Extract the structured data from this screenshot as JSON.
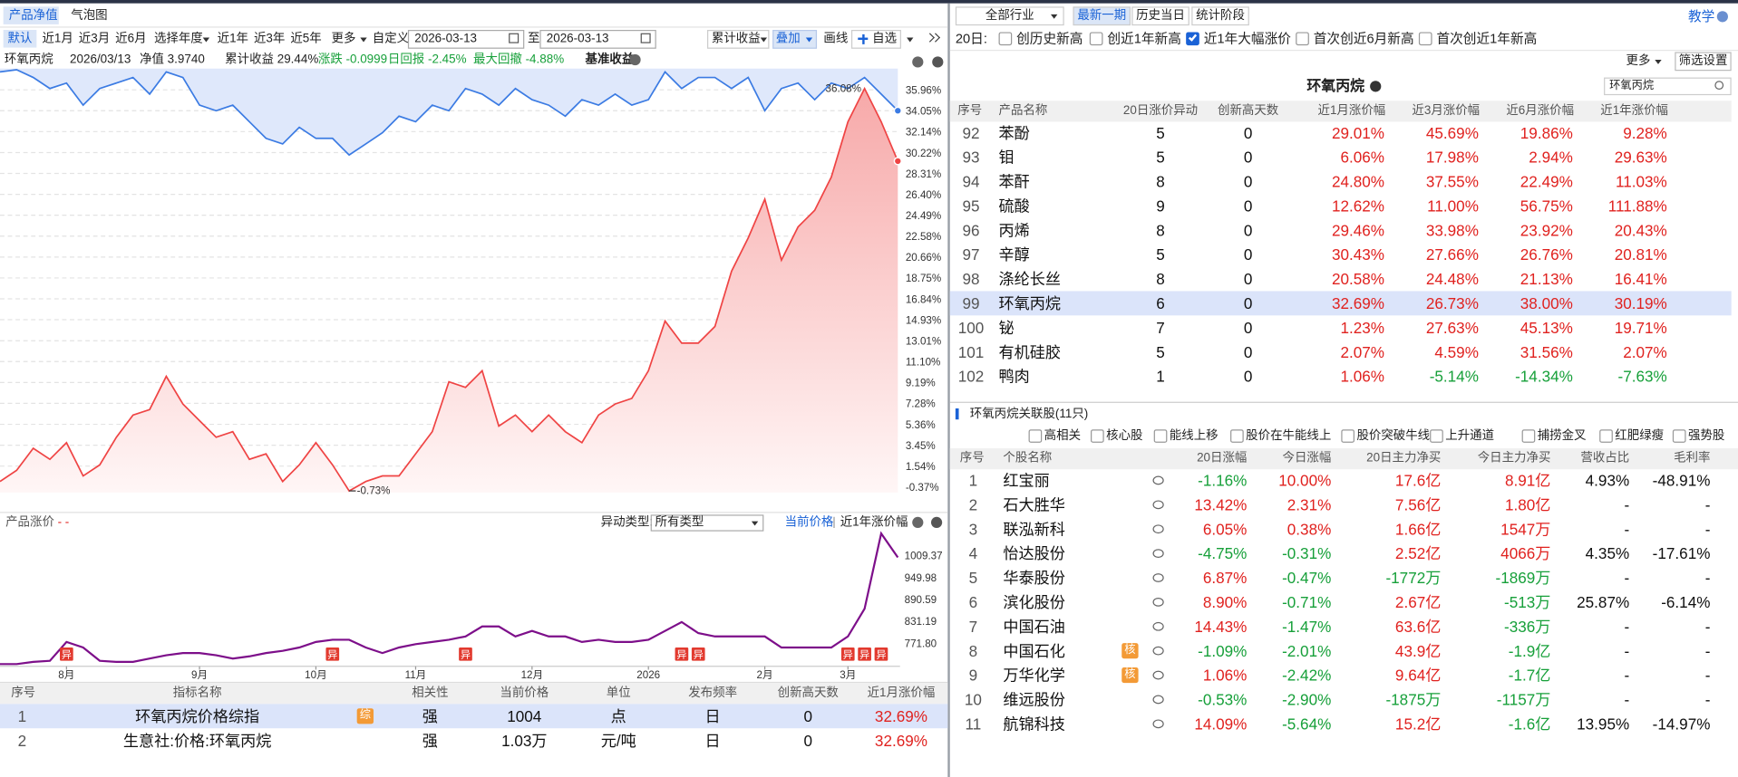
{
  "left": {
    "tabs": [
      "产品净值",
      "气泡图"
    ],
    "range_buttons": [
      "默认",
      "近1月",
      "近3月",
      "近6月",
      "选择年度",
      "近1年",
      "近3年",
      "近5年",
      "更多",
      "自定义"
    ],
    "date_from": "2026-03-13",
    "date_sep": "至",
    "date_to": "2026-03-13",
    "tools": [
      "累计收益",
      "叠加",
      "画线",
      "自选"
    ],
    "info": {
      "name": "环氧丙烷",
      "date": "2026/03/13",
      "nav": "净值 3.9740",
      "cum": "累计收益 29.44%",
      "chg": "涨跌 -0.0999",
      "daily": "日回报 -2.45%",
      "maxdd": "最大回撤 -4.88%",
      "bench": "基准收益"
    },
    "indicators": {
      "columns": [
        "序号",
        "指标名称",
        "相关性",
        "当前价格",
        "单位",
        "发布频率",
        "创新高天数",
        "近1月涨价幅"
      ],
      "rows": [
        [
          "1",
          "环氧丙烷价格综指",
          "强",
          "1004",
          "点",
          "日",
          "0",
          "32.69%"
        ],
        [
          "2",
          "生意社:价格:环氧丙烷",
          "强",
          "1.03万",
          "元/吨",
          "日",
          "0",
          "32.69%"
        ]
      ],
      "badges": [
        {
          "row": 0,
          "label": "综"
        }
      ],
      "selected": 0
    }
  },
  "nav_chart": {
    "type": "line",
    "ylim": [
      -0.88,
      37.9
    ],
    "yticks": [
      {
        "value": 35.96,
        "label": "35.96%"
      },
      {
        "value": 34.05,
        "label": "34.05%"
      },
      {
        "value": 32.14,
        "label": "32.14%"
      },
      {
        "value": 30.22,
        "label": "30.22%"
      },
      {
        "value": 28.31,
        "label": "28.31%"
      },
      {
        "value": 26.4,
        "label": "26.40%"
      },
      {
        "value": 24.49,
        "label": "24.49%"
      },
      {
        "value": 22.58,
        "label": "22.58%"
      },
      {
        "value": 20.66,
        "label": "20.66%"
      },
      {
        "value": 18.75,
        "label": "18.75%"
      },
      {
        "value": 16.84,
        "label": "16.84%"
      },
      {
        "value": 14.93,
        "label": "14.93%"
      },
      {
        "value": 13.01,
        "label": "13.01%"
      },
      {
        "value": 11.1,
        "label": "11.10%"
      },
      {
        "value": 9.19,
        "label": "9.19%"
      },
      {
        "value": 7.28,
        "label": "7.28%"
      },
      {
        "value": 5.36,
        "label": "5.36%"
      },
      {
        "value": 3.45,
        "label": "3.45%"
      },
      {
        "value": 1.54,
        "label": "1.54%"
      },
      {
        "value": -0.37,
        "label": "-0.37%"
      }
    ],
    "grid": true,
    "series": [
      {
        "color": "#3b7be3",
        "fill_color": "#dfe8fb",
        "area": "above",
        "values": [
          37.6,
          37.8,
          37.09,
          36.08,
          36.58,
          34.56,
          36.08,
          36.58,
          37.09,
          35.57,
          37.6,
          37.09,
          34.56,
          34.05,
          34.56,
          33.04,
          31.52,
          31.01,
          32.53,
          31.52,
          31.52,
          30.0,
          31.01,
          32.03,
          33.55,
          33.04,
          34.56,
          34.05,
          36.08,
          35.57,
          34.56,
          36.08,
          35.06,
          34.56,
          33.55,
          35.06,
          34.56,
          35.57,
          34.56,
          35.06,
          37.6,
          36.08,
          37.09,
          37.09,
          36.08,
          37.09,
          34.05,
          36.08,
          36.58,
          35.06,
          36.58,
          36.08,
          37.09,
          35.57,
          34.05
        ]
      },
      {
        "color": "#ef4444",
        "fill_color": "#f7a9a9",
        "area": "below",
        "values": [
          0.13,
          1.15,
          3.17,
          2.16,
          3.68,
          0.64,
          1.65,
          4.18,
          6.21,
          6.71,
          9.75,
          7.22,
          5.7,
          4.18,
          4.69,
          2.16,
          2.66,
          0.13,
          1.65,
          3.68,
          1.65,
          -0.73,
          0.13,
          0.64,
          0.64,
          2.66,
          4.69,
          9.25,
          8.74,
          10.26,
          5.2,
          6.21,
          4.69,
          6.21,
          4.69,
          3.68,
          6.21,
          7.22,
          7.73,
          10.26,
          14.81,
          12.79,
          12.79,
          14.31,
          19.37,
          22.41,
          25.95,
          20.38,
          23.42,
          24.94,
          27.98,
          33.04,
          36.08,
          33.04,
          29.44
        ]
      }
    ],
    "annotations": [
      {
        "value": 36.08,
        "label": "36.08%"
      },
      {
        "value": -0.73,
        "label": "-0.73%"
      }
    ]
  },
  "price_chart": {
    "type": "line",
    "title": "产品涨价",
    "title_suffix": "- -",
    "filter_label": "异动类型:",
    "filter_value": "所有类型",
    "links": [
      "当前价格",
      "近1年涨价幅"
    ],
    "color": "#7d0f8a",
    "ylim": [
      714.8,
      1074.8
    ],
    "yticks": [
      {
        "value": 771.8,
        "label": "771.80"
      },
      831.19,
      890.59,
      949.98,
      1009.37
    ],
    "categories": [
      null,
      null,
      null,
      null,
      "8月",
      null,
      null,
      null,
      null,
      null,
      null,
      null,
      "9月",
      null,
      null,
      null,
      null,
      null,
      null,
      "10月",
      null,
      null,
      null,
      null,
      null,
      "11月",
      null,
      null,
      null,
      null,
      null,
      null,
      "12月",
      null,
      null,
      null,
      null,
      null,
      null,
      "2026",
      null,
      null,
      null,
      null,
      null,
      null,
      "2月",
      null,
      null,
      null,
      null,
      "3月",
      null,
      null,
      null
    ],
    "values": [
      714.8,
      714.8,
      720.8,
      723.8,
      774.8,
      759.8,
      723.8,
      720.8,
      720.8,
      729.8,
      738.8,
      744.8,
      744.8,
      738.8,
      729.8,
      735.8,
      744.8,
      750.8,
      759.8,
      774.8,
      780.8,
      780.8,
      759.8,
      744.8,
      759.8,
      768.8,
      774.8,
      780.8,
      789.8,
      816.8,
      816.8,
      789.8,
      804.8,
      789.8,
      789.8,
      774.8,
      780.8,
      774.8,
      774.8,
      780.8,
      804.8,
      828.8,
      798.8,
      789.8,
      789.8,
      789.8,
      789.8,
      759.8,
      759.8,
      759.8,
      759.8,
      789.8,
      864.8,
      1068.8,
      1004
    ],
    "anomalies": [
      4,
      20,
      28,
      41,
      42,
      51,
      52,
      53
    ],
    "anomaly_label": "异"
  },
  "right": {
    "industry": "全部行业",
    "tabs": [
      "最新一期",
      "历史当日",
      "统计阶段"
    ],
    "active_tab": 0,
    "help": "教学",
    "filter_prefix": "20日:",
    "filters": [
      {
        "label": "创历史新高",
        "checked": false
      },
      {
        "label": "创近1年新高",
        "checked": false
      },
      {
        "label": "近1年大幅涨价",
        "checked": true
      },
      {
        "label": "首次创近6月新高",
        "checked": false
      },
      {
        "label": "首次创近1年新高",
        "checked": false
      }
    ],
    "more": "更多",
    "settings": "筛选设置",
    "title": "环氧丙烷",
    "search": "环氧丙烷",
    "products": {
      "columns": [
        "序号",
        "产品名称",
        "20日涨价异动",
        "创新高天数",
        "近1月涨价幅",
        "近3月涨价幅",
        "近6月涨价幅",
        "近1年涨价幅"
      ],
      "rows": [
        [
          "92",
          "苯酚",
          "5",
          "0",
          "29.01%",
          "45.69%",
          "19.86%",
          "9.28%"
        ],
        [
          "93",
          "钼",
          "5",
          "0",
          "6.06%",
          "17.98%",
          "2.94%",
          "29.63%"
        ],
        [
          "94",
          "苯酐",
          "8",
          "0",
          "24.80%",
          "37.55%",
          "22.49%",
          "11.03%"
        ],
        [
          "95",
          "硫酸",
          "9",
          "0",
          "12.62%",
          "11.00%",
          "56.75%",
          "111.88%"
        ],
        [
          "96",
          "丙烯",
          "8",
          "0",
          "29.46%",
          "33.98%",
          "23.92%",
          "20.43%"
        ],
        [
          "97",
          "辛醇",
          "5",
          "0",
          "30.43%",
          "27.66%",
          "26.76%",
          "20.81%"
        ],
        [
          "98",
          "涤纶长丝",
          "8",
          "0",
          "20.58%",
          "24.48%",
          "21.13%",
          "16.41%"
        ],
        [
          "99",
          "环氧丙烷",
          "6",
          "0",
          "32.69%",
          "26.73%",
          "38.00%",
          "30.19%"
        ],
        [
          "100",
          "铋",
          "7",
          "0",
          "1.23%",
          "27.63%",
          "45.13%",
          "19.71%"
        ],
        [
          "101",
          "有机硅胶",
          "5",
          "0",
          "2.07%",
          "4.59%",
          "31.56%",
          "2.07%"
        ],
        [
          "102",
          "鸭肉",
          "1",
          "0",
          "1.06%",
          "-5.14%",
          "-14.34%",
          "-7.63%"
        ]
      ],
      "selected": 7
    },
    "stocks": {
      "title": "环氧丙烷关联股(11只)",
      "filters": [
        "高相关",
        "核心股",
        "能线上移",
        "股价在牛能线上",
        "股价突破牛线",
        "上升通道",
        "捕捞金叉",
        "红肥绿瘦",
        "强势股"
      ],
      "columns": [
        "序号",
        "个股名称",
        "20日涨幅",
        "今日涨幅",
        "20日主力净买",
        "今日主力净买",
        "营收占比",
        "毛利率"
      ],
      "rows": [
        [
          "1",
          "红宝丽",
          "-1.16%",
          "10.00%",
          "17.6亿",
          "8.91亿",
          "4.93%",
          "-48.91%"
        ],
        [
          "2",
          "石大胜华",
          "13.42%",
          "2.31%",
          "7.56亿",
          "1.80亿",
          "-",
          "-"
        ],
        [
          "3",
          "联泓新科",
          "6.05%",
          "0.38%",
          "1.66亿",
          "1547万",
          "-",
          "-"
        ],
        [
          "4",
          "怡达股份",
          "-4.75%",
          "-0.31%",
          "2.52亿",
          "4066万",
          "4.35%",
          "-17.61%"
        ],
        [
          "5",
          "华泰股份",
          "6.87%",
          "-0.47%",
          "-1772万",
          "-1869万",
          "-",
          "-"
        ],
        [
          "6",
          "滨化股份",
          "8.90%",
          "-0.71%",
          "2.67亿",
          "-513万",
          "25.87%",
          "-6.14%"
        ],
        [
          "7",
          "中国石油",
          "14.43%",
          "-1.47%",
          "63.6亿",
          "-336万",
          "-",
          "-"
        ],
        [
          "8",
          "中国石化",
          "-1.09%",
          "-2.01%",
          "43.9亿",
          "-1.9亿",
          "-",
          "-"
        ],
        [
          "9",
          "万华化学",
          "1.06%",
          "-2.42%",
          "9.64亿",
          "-1.7亿",
          "-",
          "-"
        ],
        [
          "10",
          "维远股份",
          "-0.53%",
          "-2.90%",
          "-1875万",
          "-1157万",
          "-",
          "-"
        ],
        [
          "11",
          "航锦科技",
          "14.09%",
          "-5.64%",
          "15.2亿",
          "-1.6亿",
          "13.95%",
          "-14.97%"
        ]
      ],
      "badges": [
        {
          "row": 7,
          "label": "核"
        },
        {
          "row": 8,
          "label": "核"
        }
      ]
    }
  }
}
